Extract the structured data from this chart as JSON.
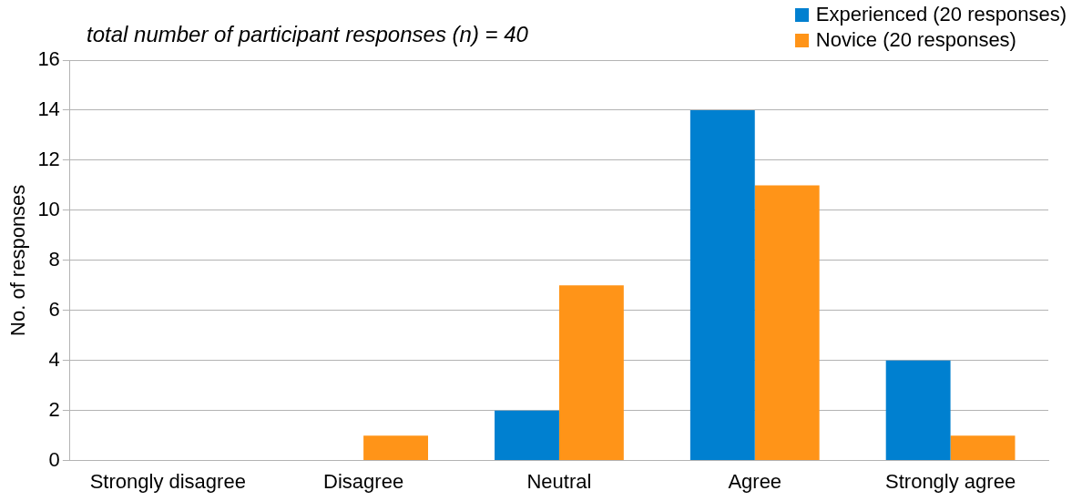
{
  "chart_data": {
    "type": "bar",
    "title": "total number of participant responses (n) = 40",
    "ylabel": "No. of responses",
    "categories": [
      "Strongly disagree",
      "Disagree",
      "Neutral",
      "Agree",
      "Strongly agree"
    ],
    "series": [
      {
        "name": "Experienced (20 responses)",
        "color": "#0080d0",
        "values": [
          0,
          0,
          2,
          14,
          4
        ]
      },
      {
        "name": "Novice (20 responses)",
        "color": "#ff9418",
        "values": [
          0,
          1,
          7,
          11,
          1
        ]
      }
    ],
    "ylim": [
      0,
      16
    ],
    "yticks": [
      0,
      2,
      4,
      6,
      8,
      10,
      12,
      14,
      16
    ],
    "grid": "y",
    "legend": "top right"
  }
}
